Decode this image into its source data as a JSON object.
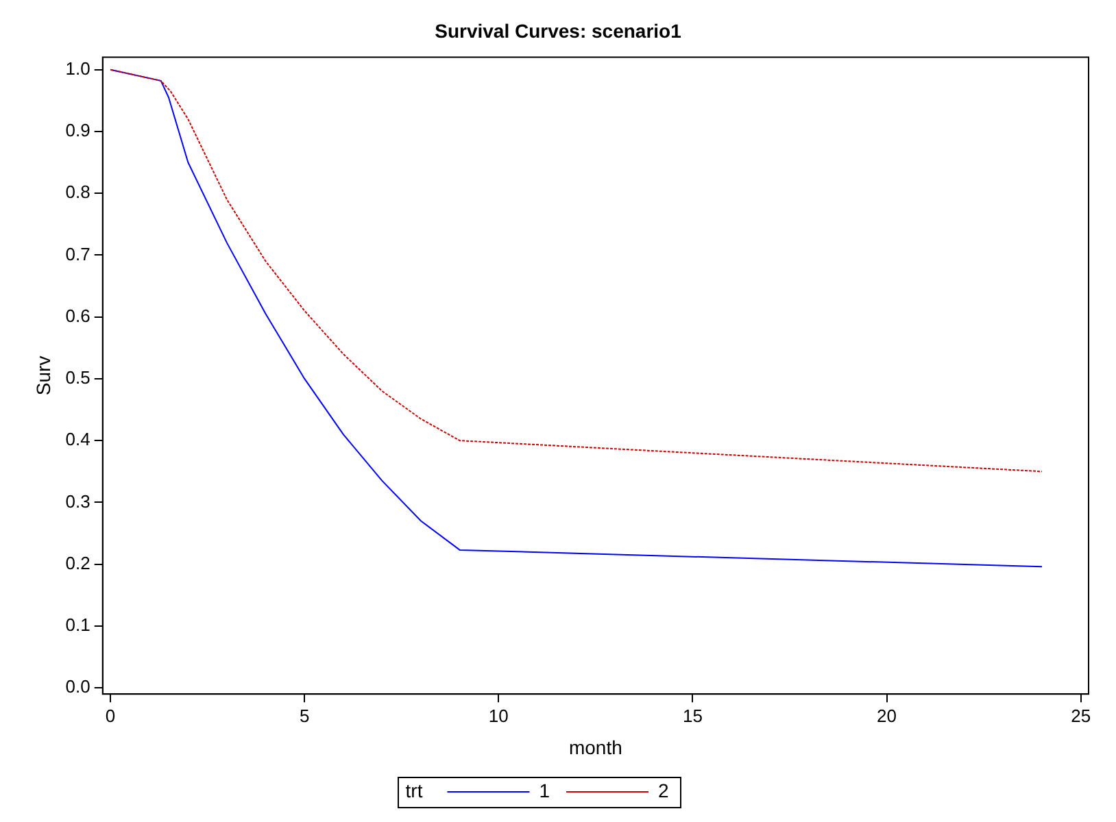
{
  "chart_data": {
    "type": "line",
    "title": "Survival Curves: scenario1",
    "xlabel": "month",
    "ylabel": "Surv",
    "legend_title": "trt",
    "legend": "bottom",
    "grid": false,
    "marker": "none",
    "xlim": [
      -0.2,
      25.2
    ],
    "xticks": [
      0,
      5,
      10,
      15,
      20,
      25
    ],
    "ylim": [
      -0.01,
      1.02
    ],
    "yticks": [
      {
        "value": 0,
        "label": "0.0"
      },
      0.1,
      0.2,
      0.3,
      0.4,
      0.5,
      0.6,
      0.7,
      0.8,
      0.9,
      {
        "value": 1,
        "label": "1.0"
      }
    ],
    "series": [
      {
        "name": "1",
        "color": "#0000ff",
        "line_style": "solid",
        "x": [
          0,
          1.3,
          1.5,
          2,
          3,
          4,
          5,
          6,
          7,
          8,
          9,
          24
        ],
        "values": [
          1,
          0.982,
          0.955,
          0.85,
          0.72,
          0.605,
          0.5,
          0.41,
          0.335,
          0.27,
          0.223,
          0.196
        ]
      },
      {
        "name": "2",
        "color": "#cc0000",
        "line_style": "dashed",
        "x": [
          0,
          1.3,
          1.55,
          2,
          3,
          4,
          5,
          6,
          7,
          8,
          9,
          24
        ],
        "values": [
          1,
          0.982,
          0.965,
          0.92,
          0.79,
          0.69,
          0.61,
          0.54,
          0.48,
          0.435,
          0.4,
          0.35
        ]
      }
    ]
  }
}
